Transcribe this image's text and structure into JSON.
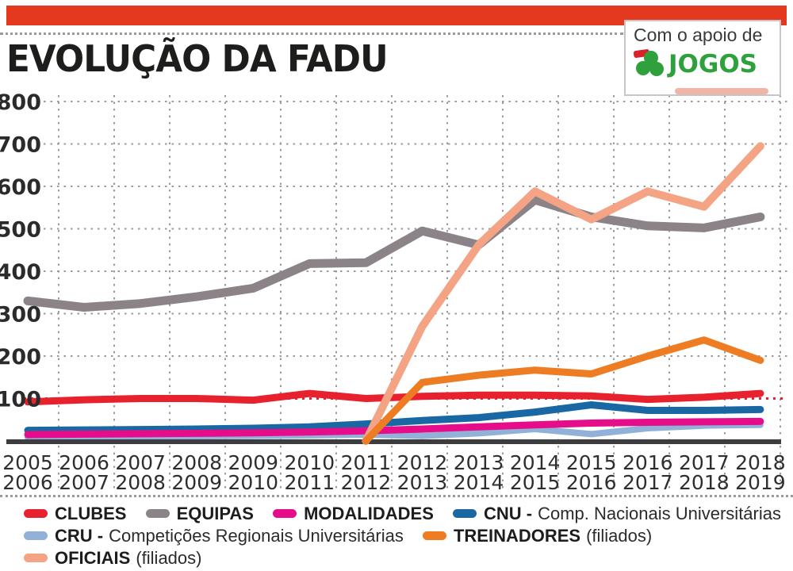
{
  "header": {
    "support_box": {
      "line1": "Com o apoio de",
      "logo_text": "JOGOS"
    }
  },
  "chart_data": {
    "type": "line",
    "title": "EVOLUÇÃO DA FADU",
    "categories": [
      "2005/2006",
      "2006/2007",
      "2007/2008",
      "2008/2009",
      "2009/2010",
      "2010/2011",
      "2011/2012",
      "2012/2013",
      "2013/2014",
      "2014/2015",
      "2015/2016",
      "2016/2017",
      "2017/2018",
      "2018/2019"
    ],
    "ylim": [
      0,
      800
    ],
    "yticks": [
      100,
      200,
      300,
      400,
      500,
      600,
      700,
      800
    ],
    "grid": "dotted",
    "legend_position": "bottom",
    "reference_line": {
      "value": 100,
      "color": "#e7212d"
    },
    "series": [
      {
        "name": "CLUBES",
        "color": "#e7212d",
        "values": [
          92,
          97,
          100,
          100,
          96,
          112,
          100,
          105,
          108,
          108,
          106,
          98,
          103,
          112
        ]
      },
      {
        "name": "EQUIPAS",
        "color": "#8b8387",
        "values": [
          330,
          315,
          324,
          340,
          360,
          418,
          420,
          495,
          462,
          568,
          528,
          507,
          502,
          528
        ]
      },
      {
        "name": "MODALIDADES",
        "color": "#e60d8a",
        "values": [
          15,
          16,
          17,
          18,
          19,
          21,
          24,
          28,
          33,
          38,
          42,
          44,
          45,
          46
        ]
      },
      {
        "name": "CNU",
        "color": "#1968a3",
        "values": [
          25,
          26,
          27,
          28,
          30,
          33,
          40,
          48,
          55,
          68,
          85,
          72,
          72,
          74
        ]
      },
      {
        "name": "CRU",
        "color": "#92b1d8",
        "values": [
          8,
          9,
          10,
          11,
          12,
          13,
          15,
          12,
          18,
          28,
          16,
          30,
          36,
          38
        ]
      },
      {
        "name": "TREINADORES",
        "color": "#ee7c22",
        "values": [
          null,
          null,
          null,
          null,
          null,
          null,
          0,
          138,
          155,
          167,
          158,
          200,
          238,
          190
        ]
      },
      {
        "name": "OFICIAIS",
        "color": "#f4a384",
        "values": [
          null,
          null,
          null,
          null,
          null,
          null,
          0,
          270,
          462,
          588,
          522,
          588,
          552,
          695
        ]
      }
    ]
  },
  "legend": {
    "items": [
      {
        "bold": "CLUBES",
        "rest": ""
      },
      {
        "bold": "EQUIPAS",
        "rest": ""
      },
      {
        "bold": "MODALIDADES",
        "rest": ""
      },
      {
        "bold": "CNU -",
        "rest": "Comp. Nacionais Universitárias"
      },
      {
        "bold": "CRU -",
        "rest": "Competições Regionais Universitárias"
      },
      {
        "bold": "TREINADORES",
        "rest": "(filiados)"
      },
      {
        "bold": "OFICIAIS",
        "rest": "(filiados)"
      }
    ]
  }
}
